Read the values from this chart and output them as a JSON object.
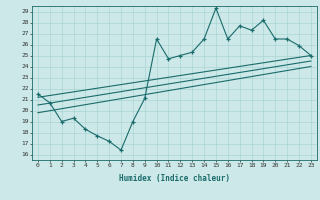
{
  "xlabel": "Humidex (Indice chaleur)",
  "bg_color": "#cce8e8",
  "line_color": "#1a6b6b",
  "grid_color": "#aad4d4",
  "xlim": [
    -0.5,
    23.5
  ],
  "ylim": [
    15.5,
    29.5
  ],
  "xticks": [
    0,
    1,
    2,
    3,
    4,
    5,
    6,
    7,
    8,
    9,
    10,
    11,
    12,
    13,
    14,
    15,
    16,
    17,
    18,
    19,
    20,
    21,
    22,
    23
  ],
  "yticks": [
    16,
    17,
    18,
    19,
    20,
    21,
    22,
    23,
    24,
    25,
    26,
    27,
    28,
    29
  ],
  "main_x": [
    0,
    1,
    2,
    3,
    4,
    5,
    6,
    7,
    8,
    9,
    10,
    11,
    12,
    13,
    14,
    15,
    16,
    17,
    18,
    19,
    20,
    21,
    22,
    23
  ],
  "main_y": [
    21.5,
    20.7,
    19.0,
    19.3,
    18.3,
    17.7,
    17.2,
    16.4,
    19.0,
    21.1,
    26.5,
    24.7,
    25.0,
    25.3,
    26.5,
    29.3,
    26.5,
    27.7,
    27.3,
    28.2,
    26.5,
    26.5,
    25.9,
    25.0
  ],
  "reg_line1_x": [
    0,
    23
  ],
  "reg_line1_y": [
    21.2,
    25.0
  ],
  "reg_line2_x": [
    0,
    23
  ],
  "reg_line2_y": [
    20.5,
    24.5
  ],
  "reg_line3_x": [
    0,
    23
  ],
  "reg_line3_y": [
    19.8,
    24.0
  ],
  "tick_fontsize": 4.5,
  "xlabel_fontsize": 5.5
}
